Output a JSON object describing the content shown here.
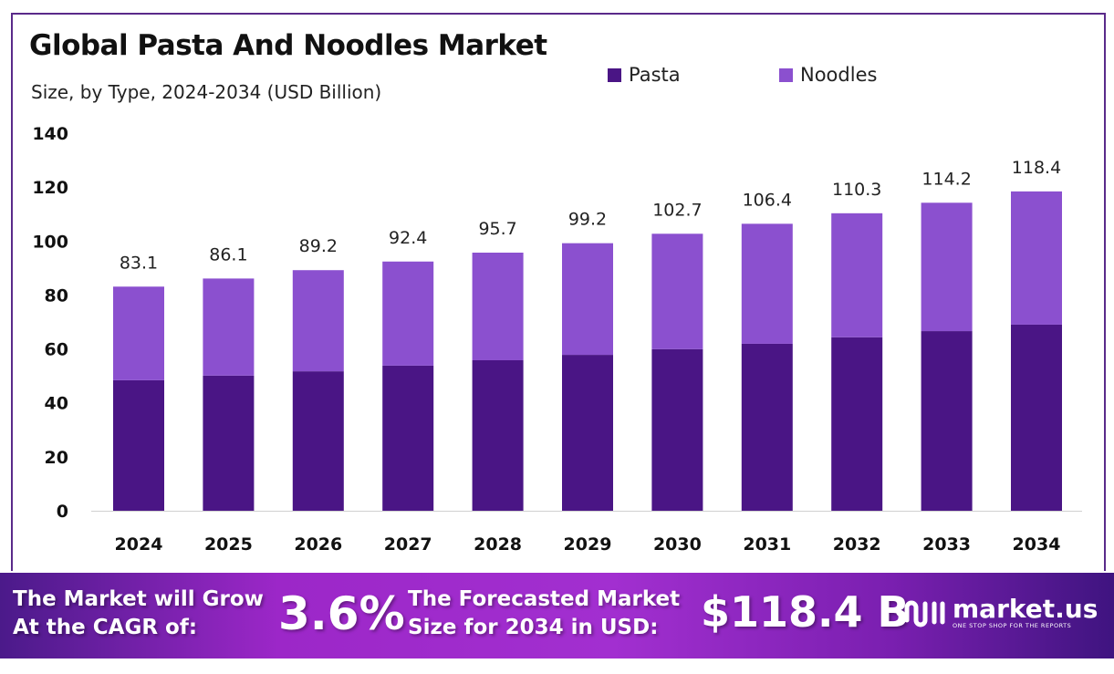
{
  "chart_data": {
    "type": "bar",
    "stacked": true,
    "title": "Global Pasta And Noodles Market",
    "subtitle": "Size, by Type, 2024-2034 (USD Billion)",
    "categories": [
      "2024",
      "2025",
      "2026",
      "2027",
      "2028",
      "2029",
      "2030",
      "2031",
      "2032",
      "2033",
      "2034"
    ],
    "series": [
      {
        "name": "Pasta",
        "color": "#4a1585",
        "values": [
          48.4,
          50.1,
          51.7,
          53.8,
          55.8,
          57.8,
          59.9,
          61.9,
          64.3,
          66.6,
          69.0
        ]
      },
      {
        "name": "Noodles",
        "color": "#8b50cf",
        "values": [
          34.7,
          36.0,
          37.5,
          38.6,
          39.9,
          41.4,
          42.8,
          44.5,
          46.0,
          47.6,
          49.4
        ]
      }
    ],
    "totals": [
      "83.1",
      "86.1",
      "89.2",
      "92.4",
      "95.7",
      "99.2",
      "102.7",
      "106.4",
      "110.3",
      "114.2",
      "118.4"
    ],
    "ylim": [
      0,
      140
    ],
    "yticks": [
      "0",
      "20",
      "40",
      "60",
      "80",
      "100",
      "120",
      "140"
    ],
    "grid": false,
    "legend_position": "top"
  },
  "banner": {
    "cagr_label_1": "The Market will Grow",
    "cagr_label_2": "At the CAGR of:",
    "cagr_value": "3.6%",
    "forecast_label_1": "The Forecasted Market",
    "forecast_label_2": "Size for 2034 in USD:",
    "forecast_value": "$118.4 B",
    "logo_name": "market.us",
    "logo_tagline": "ONE STOP SHOP FOR THE REPORTS"
  }
}
